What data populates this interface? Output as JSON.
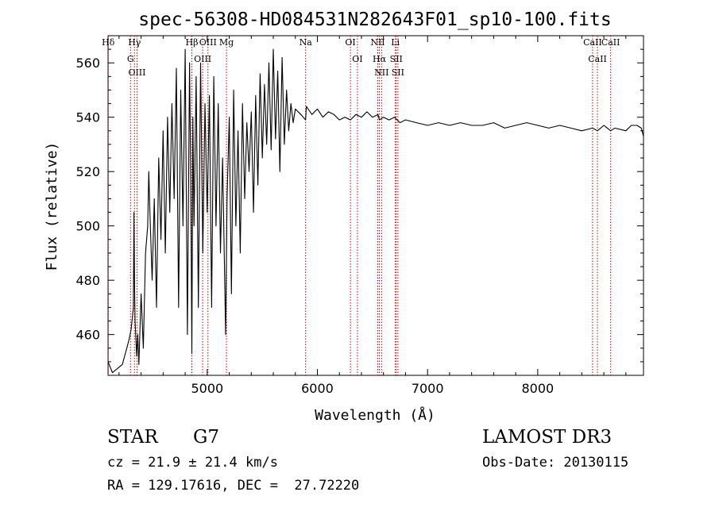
{
  "chart_data": {
    "type": "line",
    "title": "spec-56308-HD084531N282643F01_sp10-100.fits",
    "xlabel": "Wavelength (Å)",
    "ylabel": "Flux (relative)",
    "xlim": [
      4100,
      8960
    ],
    "ylim": [
      445,
      570
    ],
    "x_ticks": [
      5000,
      6000,
      7000,
      8000
    ],
    "y_ticks": [
      460,
      480,
      500,
      520,
      540,
      560
    ],
    "x_tick_labels": [
      "5000",
      "6000",
      "7000",
      "8000"
    ],
    "y_tick_labels": [
      "460",
      "480",
      "500",
      "520",
      "540",
      "560"
    ],
    "series": [
      {
        "name": "flux",
        "color": "#000000",
        "x": [
          4100,
          4140,
          4170,
          4200,
          4230,
          4250,
          4270,
          4290,
          4310,
          4330,
          4335,
          4340,
          4345,
          4360,
          4370,
          4380,
          4400,
          4420,
          4440,
          4460,
          4470,
          4480,
          4500,
          4520,
          4540,
          4560,
          4580,
          4600,
          4620,
          4640,
          4660,
          4680,
          4700,
          4720,
          4740,
          4760,
          4780,
          4800,
          4820,
          4840,
          4850,
          4861,
          4870,
          4880,
          4900,
          4920,
          4940,
          4960,
          4980,
          5000,
          5020,
          5040,
          5060,
          5080,
          5100,
          5120,
          5140,
          5167,
          5180,
          5200,
          5220,
          5240,
          5260,
          5280,
          5300,
          5320,
          5340,
          5360,
          5380,
          5400,
          5420,
          5440,
          5460,
          5480,
          5500,
          5520,
          5540,
          5560,
          5580,
          5600,
          5620,
          5640,
          5660,
          5680,
          5700,
          5720,
          5740,
          5760,
          5780,
          5800,
          5850,
          5893,
          5900,
          5950,
          6000,
          6050,
          6100,
          6150,
          6200,
          6250,
          6300,
          6350,
          6400,
          6450,
          6500,
          6550,
          6563,
          6600,
          6650,
          6700,
          6750,
          6800,
          6900,
          7000,
          7100,
          7200,
          7300,
          7400,
          7500,
          7600,
          7700,
          7800,
          7900,
          8000,
          8100,
          8200,
          8300,
          8400,
          8498,
          8542,
          8600,
          8662,
          8700,
          8800,
          8850,
          8900,
          8940,
          8960
        ],
        "y": [
          450,
          446,
          447,
          448,
          449,
          452,
          455,
          458,
          462,
          470,
          505,
          480,
          465,
          452,
          460,
          449,
          475,
          455,
          490,
          500,
          520,
          505,
          480,
          510,
          470,
          525,
          495,
          535,
          490,
          540,
          505,
          545,
          510,
          558,
          470,
          550,
          500,
          565,
          460,
          560,
          520,
          453,
          540,
          500,
          555,
          470,
          560,
          490,
          545,
          505,
          548,
          470,
          555,
          500,
          545,
          490,
          525,
          460,
          510,
          540,
          475,
          550,
          500,
          535,
          490,
          545,
          510,
          538,
          520,
          542,
          505,
          548,
          515,
          556,
          525,
          552,
          530,
          560,
          528,
          565,
          532,
          557,
          520,
          562,
          530,
          550,
          535,
          545,
          538,
          543,
          541,
          539,
          544,
          541,
          543,
          540,
          542,
          541,
          539,
          540,
          539,
          541,
          540,
          542,
          540,
          541,
          539,
          540,
          539,
          540,
          538,
          539,
          538,
          537,
          538,
          537,
          538,
          537,
          537,
          538,
          536,
          537,
          538,
          537,
          536,
          537,
          536,
          535,
          536,
          535,
          537,
          535,
          536,
          535,
          537,
          537,
          536,
          533
        ]
      }
    ],
    "lines": [
      {
        "label": "Hδ",
        "x": 4102
      },
      {
        "label": "Hγ",
        "x": 4340
      },
      {
        "label": "G",
        "x": 4304
      },
      {
        "label": "OIII",
        "x": 4363
      },
      {
        "label": "Hβ",
        "x": 4861
      },
      {
        "label": "OIII",
        "x": 4959
      },
      {
        "label": "OIII",
        "x": 5007
      },
      {
        "label": "Mg",
        "x": 5175
      },
      {
        "label": "Na",
        "x": 5893
      },
      {
        "label": "OI",
        "x": 6300
      },
      {
        "label": "OI",
        "x": 6364
      },
      {
        "label": "NII",
        "x": 6548
      },
      {
        "label": "Hα",
        "x": 6563
      },
      {
        "label": "NII",
        "x": 6583
      },
      {
        "label": "Li",
        "x": 6708
      },
      {
        "label": "SII",
        "x": 6716
      },
      {
        "label": "SII",
        "x": 6731
      },
      {
        "label": "CaII",
        "x": 8498
      },
      {
        "label": "CaII",
        "x": 8542
      },
      {
        "label": "CaII",
        "x": 8662
      }
    ]
  },
  "info": {
    "class": "STAR",
    "subclass": "G7",
    "survey": "LAMOST DR3",
    "cz": "cz = 21.9 ± 21.4 km/s",
    "obs_date": "Obs-Date: 20130115",
    "coords": "RA = 129.17616, DEC =  27.72220"
  }
}
